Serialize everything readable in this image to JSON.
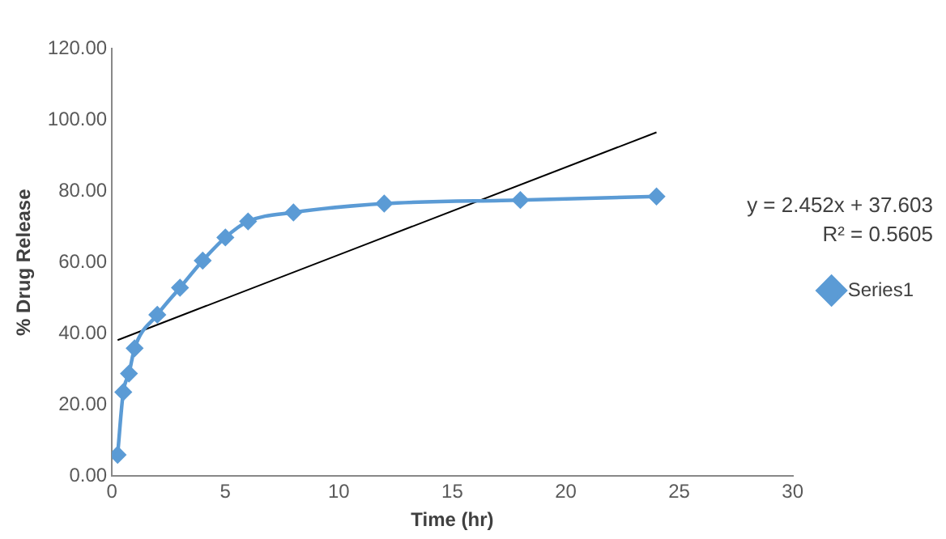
{
  "chart_data": {
    "type": "line",
    "xlabel": "Time (hr)",
    "ylabel": "% Drug Release",
    "x": [
      0.25,
      0.5,
      0.75,
      1,
      2,
      3,
      4,
      5,
      6,
      8,
      12,
      18,
      24
    ],
    "series": [
      {
        "name": "Series1",
        "color": "#5b9bd5",
        "values": [
          6,
          23.6,
          28.8,
          35.9,
          45.3,
          52.9,
          60.5,
          67,
          71.5,
          74,
          76.5,
          77.5,
          78.5
        ]
      },
      {
        "type": "line",
        "color": "#000000",
        "x": [
          0.25,
          24
        ],
        "values": [
          38.2,
          96.5
        ],
        "marker": "none"
      }
    ],
    "xlim": [
      0,
      30
    ],
    "xticks": [
      0,
      5,
      10,
      15,
      20,
      25,
      30
    ],
    "ylim": [
      0,
      120
    ],
    "yticks": [
      {
        "value": 0,
        "label": "0.00"
      },
      {
        "value": 20,
        "label": "20.00"
      },
      {
        "value": 40,
        "label": "40.00"
      },
      {
        "value": 60,
        "label": "60.00"
      },
      {
        "value": 80,
        "label": "80.00"
      },
      {
        "value": 100,
        "label": "100.00"
      },
      {
        "value": 120,
        "label": "120.00"
      }
    ],
    "annotations": [
      "y = 2.452x + 37.603",
      "R² = 0.5605"
    ],
    "marker": "diamond",
    "legend": "right",
    "grid": false
  }
}
